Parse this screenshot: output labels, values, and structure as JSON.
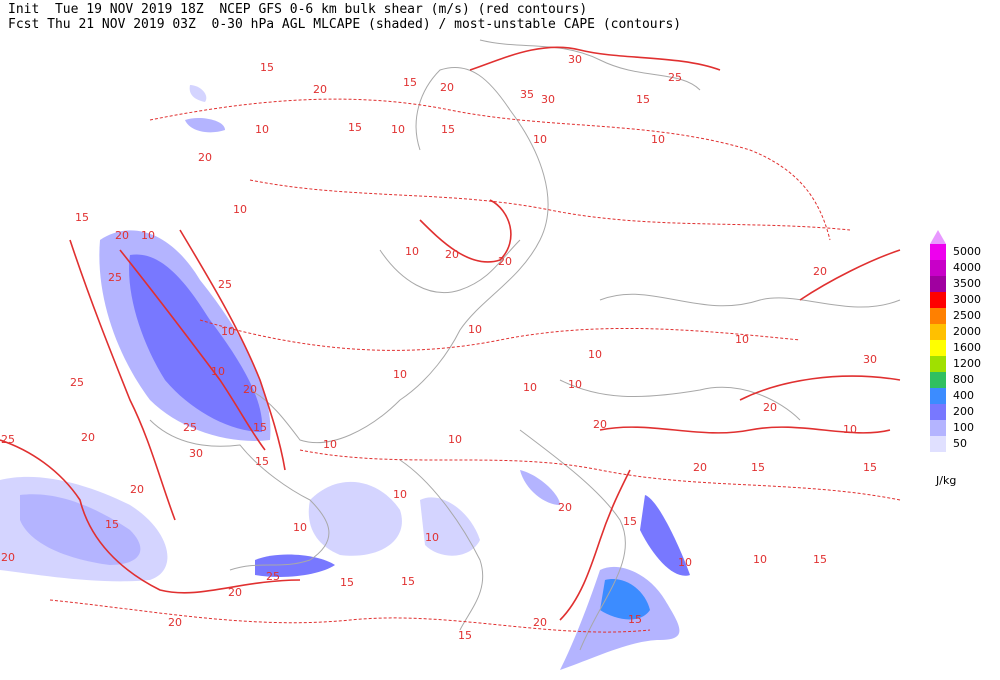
{
  "header": {
    "line1": "Init  Tue 19 NOV 2019 18Z  NCEP GFS 0-6 km bulk shear (m/s) (red contours)",
    "line2": "Fcst Thu 21 NOV 2019 03Z  0-30 hPa AGL MLCAPE (shaded) / most-unstable CAPE (contours)"
  },
  "legend": {
    "items": [
      {
        "label": 5000,
        "color": "#ee00ee"
      },
      {
        "label": 4000,
        "color": "#c800c8"
      },
      {
        "label": 3500,
        "color": "#a000a0"
      },
      {
        "label": 3000,
        "color": "#ff0000"
      },
      {
        "label": 2500,
        "color": "#ff8000"
      },
      {
        "label": 2000,
        "color": "#ffc000"
      },
      {
        "label": 1600,
        "color": "#ffff00"
      },
      {
        "label": 1200,
        "color": "#a0e000"
      },
      {
        "label": 800,
        "color": "#30c060"
      },
      {
        "label": 400,
        "color": "#3c8cff"
      },
      {
        "label": 200,
        "color": "#7878ff"
      },
      {
        "label": 100,
        "color": "#b4b4ff"
      },
      {
        "label": 50,
        "color": "#e0e0ff"
      }
    ],
    "top_color": "#e898ff",
    "unit": "J/kg"
  },
  "contour_labels": [
    15,
    20,
    15,
    20,
    30,
    25,
    35,
    30,
    15,
    10,
    15,
    10,
    15,
    10,
    10,
    20,
    10,
    15,
    20,
    10,
    10,
    20,
    20,
    20,
    25,
    25,
    10,
    10,
    10,
    10,
    30,
    10,
    20,
    10,
    10,
    10,
    25,
    15,
    25,
    30,
    20,
    25,
    15,
    10,
    10,
    20,
    20,
    10,
    20,
    15,
    15,
    20,
    15,
    10,
    20,
    15,
    10,
    10,
    10,
    20,
    25,
    15,
    15,
    20,
    20,
    20,
    15,
    15,
    15,
    10
  ]
}
